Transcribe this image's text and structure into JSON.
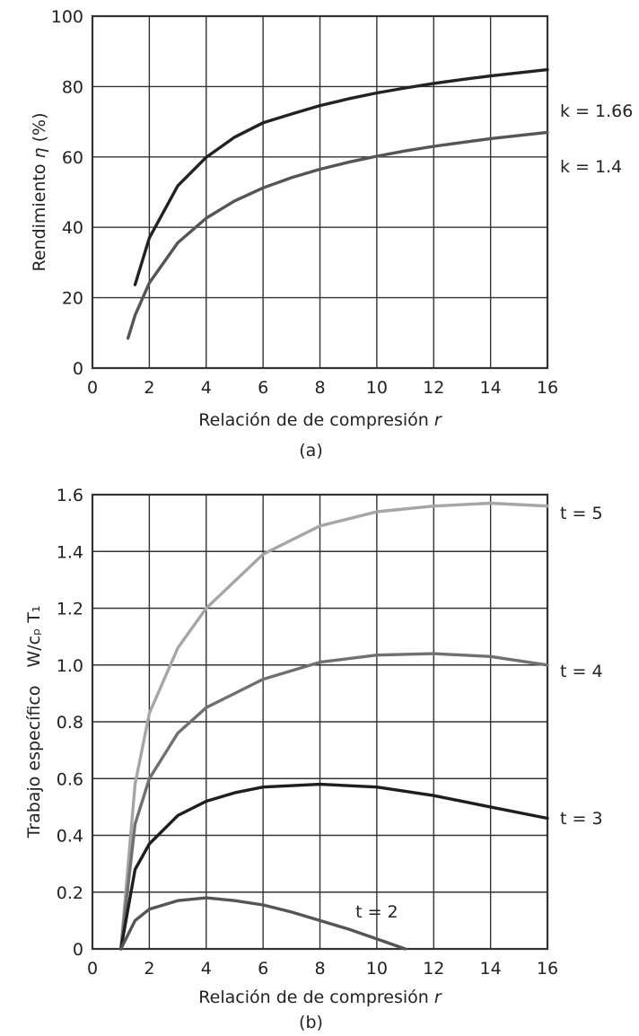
{
  "chart_data": [
    {
      "type": "line",
      "panel_label": "(a)",
      "xlabel": "Relación de de compresión",
      "xlabel_var": "r",
      "ylabel": "Rendimiento",
      "ylabel_var": "η",
      "ylabel_unit": "(%)",
      "xlim": [
        0,
        16
      ],
      "ylim": [
        0,
        100
      ],
      "xticks": [
        0,
        2,
        4,
        6,
        8,
        10,
        12,
        14,
        16
      ],
      "yticks": [
        0,
        20,
        40,
        60,
        80,
        100
      ],
      "grid": true,
      "colors": {
        "axis": "#333333",
        "grid": "#333333"
      },
      "series": [
        {
          "label": "k = 1.66",
          "color": "#222222",
          "x": [
            1.5,
            2,
            3,
            4,
            5,
            6,
            7,
            8,
            9,
            10,
            11,
            12,
            13,
            14,
            15,
            16
          ],
          "y": [
            23.7,
            37.0,
            51.8,
            59.9,
            65.6,
            69.7,
            72.2,
            74.6,
            76.5,
            78.2,
            79.6,
            80.9,
            82.0,
            83.0,
            83.9,
            84.8
          ]
        },
        {
          "label": "k = 1.4",
          "color": "#555555",
          "x": [
            1.25,
            1.5,
            2,
            3,
            4,
            5,
            6,
            7,
            8,
            9,
            10,
            11,
            12,
            13,
            14,
            15,
            16
          ],
          "y": [
            8.5,
            15.0,
            24.2,
            35.6,
            42.6,
            47.5,
            51.2,
            54.1,
            56.5,
            58.5,
            60.2,
            61.7,
            63.0,
            64.1,
            65.2,
            66.1,
            67.0
          ]
        }
      ]
    },
    {
      "type": "line",
      "panel_label": "(b)",
      "xlabel": "Relación de de compresión",
      "xlabel_var": "r",
      "ylabel": "Trabajo específico",
      "ylabel_expr": "W/cₚ T₁",
      "xlim": [
        0,
        16
      ],
      "ylim": [
        0,
        1.6
      ],
      "xticks": [
        0,
        2,
        4,
        6,
        8,
        10,
        12,
        14,
        16
      ],
      "yticks": [
        0,
        0.2,
        0.4,
        0.6,
        0.8,
        1.0,
        1.2,
        1.4,
        1.6
      ],
      "ytick_labels": [
        "0",
        "0.2",
        "0.4",
        "0.6",
        "0.8",
        "1.0",
        "1.2",
        "1.4",
        "1.6"
      ],
      "grid": true,
      "colors": {
        "axis": "#333333",
        "grid": "#333333"
      },
      "series": [
        {
          "label": "t = 5",
          "color": "#a6a6a6",
          "x": [
            1,
            1.5,
            2,
            3,
            4,
            6,
            8,
            10,
            12,
            14,
            16
          ],
          "y": [
            0.0,
            0.58,
            0.83,
            1.06,
            1.2,
            1.39,
            1.49,
            1.54,
            1.56,
            1.57,
            1.56
          ]
        },
        {
          "label": "t = 4",
          "color": "#707070",
          "x": [
            1,
            1.5,
            2,
            3,
            4,
            6,
            8,
            10,
            12,
            14,
            16
          ],
          "y": [
            0.0,
            0.44,
            0.6,
            0.76,
            0.85,
            0.95,
            1.01,
            1.035,
            1.04,
            1.03,
            1.0
          ]
        },
        {
          "label": "t = 3",
          "color": "#1e1e1e",
          "x": [
            1,
            1.5,
            2,
            3,
            4,
            5,
            6,
            8,
            10,
            12,
            14,
            16
          ],
          "y": [
            0.0,
            0.28,
            0.37,
            0.47,
            0.52,
            0.55,
            0.57,
            0.58,
            0.57,
            0.54,
            0.5,
            0.46
          ]
        },
        {
          "label": "t = 2",
          "color": "#555555",
          "x": [
            1,
            1.5,
            2,
            3,
            4,
            5,
            6,
            7,
            8,
            9,
            10,
            11
          ],
          "y": [
            0.0,
            0.1,
            0.14,
            0.17,
            0.18,
            0.17,
            0.155,
            0.13,
            0.1,
            0.07,
            0.035,
            0.0
          ]
        }
      ]
    }
  ]
}
